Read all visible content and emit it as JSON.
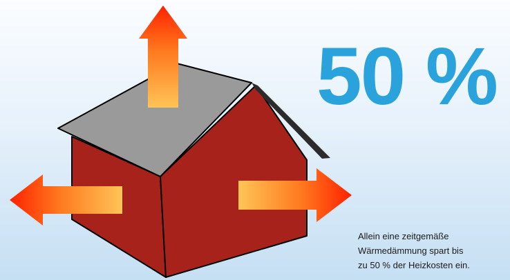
{
  "headline": {
    "value": "50 %"
  },
  "caption": {
    "lines": [
      "Allein eine zeitgemäße",
      "Wärmedämmung spart bis",
      "zu 50 % der Heizkosten ein."
    ]
  },
  "icons": {
    "house": "house-icon",
    "arrow_up": "arrow-up-icon",
    "arrow_left": "arrow-left-icon",
    "arrow_right": "arrow-right-icon"
  },
  "colors": {
    "accent": "#2aa3dc",
    "wall": "#a6221b",
    "roof": "#9a9a9a",
    "heat_hot": "#ff2400",
    "heat_warm": "#ffb347"
  }
}
